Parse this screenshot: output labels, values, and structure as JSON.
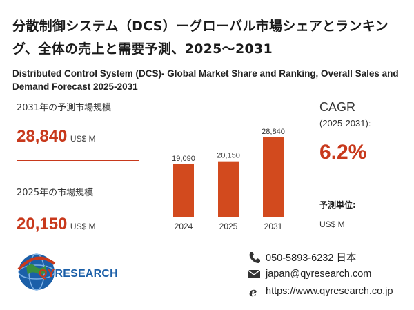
{
  "title_jp": "分散制御システム（DCS）ーグローバル市場シェアとランキング、全体の売上と需要予測、2025～2031",
  "title_en": "Distributed Control System (DCS)- Global Market Share and Ranking, Overall Sales and Demand Forecast 2025-2031",
  "forecast_2031": {
    "label": "2031年の予測市場規模",
    "value": "28,840",
    "unit": "US$ M"
  },
  "market_2025": {
    "label": "2025年の市場規模",
    "value": "20,150",
    "unit": "US$ M"
  },
  "cagr": {
    "label": "CAGR",
    "period": "(2025-2031):",
    "value": "6.2%"
  },
  "forecast_unit": {
    "label": "予測単位:",
    "value": "US$ M"
  },
  "contact": {
    "phone": "050-5893-6232 日本",
    "email": "japan@qyresearch.com",
    "website": "https://www.qyresearch.co.jp"
  },
  "logo": {
    "qy": "QY",
    "research": "RESEARCH"
  },
  "colors": {
    "accent": "#c8391c",
    "bar": "#d24a1e",
    "logo_blue": "#1b5fa8"
  },
  "chart_data": {
    "type": "bar",
    "categories": [
      "2024",
      "2025",
      "2031"
    ],
    "values": [
      19090,
      20150,
      28840
    ],
    "value_labels": [
      "19,090",
      "20,150",
      "28,840"
    ],
    "title": "",
    "xlabel": "",
    "ylabel": "",
    "ylim": [
      0,
      32000
    ],
    "grid": false,
    "legend": "none"
  }
}
